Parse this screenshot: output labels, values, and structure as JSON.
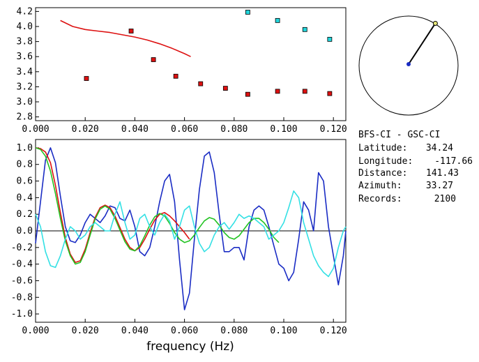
{
  "info": {
    "pair": "BFS-CI - GSC-CI",
    "rows": [
      {
        "label": "Latitude:",
        "value": "34.24"
      },
      {
        "label": "Longitude:",
        "value": "-117.66"
      },
      {
        "label": "Distance:",
        "value": "141.43"
      },
      {
        "label": "Azimuth:",
        "value": "33.27"
      },
      {
        "label": "Records:",
        "value": "2100"
      }
    ]
  },
  "chart_data": [
    {
      "type": "scatter",
      "xlabel": "",
      "ylabel": "",
      "xlim": [
        0.0,
        0.125
      ],
      "ylim": [
        2.75,
        4.25
      ],
      "x_ticks": [
        "0.000",
        "0.020",
        "0.040",
        "0.060",
        "0.080",
        "0.100",
        "0.120"
      ],
      "y_ticks": [
        "2.8",
        "3.0",
        "3.2",
        "3.4",
        "3.6",
        "3.8",
        "4.0",
        "4.2"
      ],
      "series": [
        {
          "color": "#dd1111",
          "marker": "square",
          "x": [
            0.0205,
            0.0385,
            0.0475,
            0.0565,
            0.0665,
            0.0765,
            0.0855,
            0.0975,
            0.1085,
            0.1185
          ],
          "y": [
            3.31,
            3.94,
            3.56,
            3.34,
            3.24,
            3.18,
            3.1,
            3.14,
            3.14,
            3.11
          ]
        },
        {
          "color": "#22d6dc",
          "marker": "square",
          "x": [
            0.0855,
            0.0975,
            0.1085,
            0.1185
          ],
          "y": [
            4.19,
            4.08,
            3.96,
            3.83
          ]
        },
        {
          "color": "#dd1111",
          "marker": "line",
          "x": [
            0.01,
            0.015,
            0.02,
            0.025,
            0.03,
            0.035,
            0.04,
            0.045,
            0.05,
            0.055,
            0.06,
            0.0625
          ],
          "y": [
            4.08,
            4.0,
            3.96,
            3.94,
            3.92,
            3.89,
            3.86,
            3.82,
            3.77,
            3.71,
            3.64,
            3.6
          ]
        }
      ]
    },
    {
      "type": "line",
      "xlabel": "frequency (Hz)",
      "ylabel": "",
      "xlim": [
        0.0,
        0.125
      ],
      "ylim": [
        -1.1,
        1.1
      ],
      "x_ticks": [
        "0.000",
        "0.020",
        "0.040",
        "0.060",
        "0.080",
        "0.100",
        "0.120"
      ],
      "y_ticks": [
        "1.0",
        "0.8",
        "0.6",
        "0.4",
        "0.2",
        "0.0",
        "-0.2",
        "-0.4",
        "-0.6",
        "-0.8",
        "-1.0"
      ],
      "series": [
        {
          "color": "#1a2cc4",
          "x": [
            0,
            0.002,
            0.004,
            0.006,
            0.008,
            0.01,
            0.012,
            0.014,
            0.016,
            0.018,
            0.02,
            0.022,
            0.024,
            0.026,
            0.028,
            0.03,
            0.032,
            0.034,
            0.036,
            0.038,
            0.04,
            0.042,
            0.044,
            0.046,
            0.048,
            0.05,
            0.052,
            0.054,
            0.056,
            0.058,
            0.06,
            0.062,
            0.064,
            0.066,
            0.068,
            0.07,
            0.072,
            0.074,
            0.076,
            0.078,
            0.08,
            0.082,
            0.084,
            0.086,
            0.088,
            0.09,
            0.092,
            0.094,
            0.096,
            0.098,
            0.1,
            0.102,
            0.104,
            0.106,
            0.108,
            0.11,
            0.112,
            0.114,
            0.116,
            0.118,
            0.12,
            0.122,
            0.124,
            0.125
          ],
          "y": [
            -0.15,
            0.35,
            0.85,
            1.0,
            0.82,
            0.42,
            0.05,
            -0.12,
            -0.14,
            -0.05,
            0.1,
            0.2,
            0.15,
            0.1,
            0.18,
            0.3,
            0.28,
            0.15,
            0.12,
            0.25,
            0.05,
            -0.25,
            -0.3,
            -0.2,
            0.05,
            0.35,
            0.6,
            0.68,
            0.35,
            -0.35,
            -0.95,
            -0.75,
            -0.1,
            0.5,
            0.9,
            0.95,
            0.7,
            0.2,
            -0.25,
            -0.25,
            -0.2,
            -0.2,
            -0.35,
            0.05,
            0.25,
            0.3,
            0.25,
            0.05,
            -0.18,
            -0.4,
            -0.45,
            -0.6,
            -0.5,
            -0.1,
            0.35,
            0.25,
            0.0,
            0.7,
            0.6,
            0.05,
            -0.3,
            -0.65,
            -0.3,
            0.0
          ]
        },
        {
          "color": "#dd1111",
          "x": [
            0,
            0.002,
            0.004,
            0.006,
            0.008,
            0.01,
            0.012,
            0.014,
            0.016,
            0.018,
            0.02,
            0.022,
            0.024,
            0.026,
            0.028,
            0.03,
            0.032,
            0.034,
            0.036,
            0.038,
            0.04,
            0.042,
            0.044,
            0.046,
            0.048,
            0.05,
            0.052,
            0.054,
            0.056,
            0.058,
            0.06,
            0.062
          ],
          "y": [
            1.0,
            0.99,
            0.95,
            0.82,
            0.55,
            0.22,
            -0.08,
            -0.28,
            -0.38,
            -0.36,
            -0.22,
            -0.02,
            0.16,
            0.28,
            0.31,
            0.28,
            0.18,
            0.04,
            -0.1,
            -0.2,
            -0.24,
            -0.2,
            -0.1,
            0.02,
            0.13,
            0.2,
            0.22,
            0.18,
            0.12,
            0.05,
            -0.02,
            -0.1
          ]
        },
        {
          "color": "#22c322",
          "x": [
            0,
            0.002,
            0.004,
            0.006,
            0.008,
            0.01,
            0.012,
            0.014,
            0.016,
            0.018,
            0.02,
            0.022,
            0.024,
            0.026,
            0.028,
            0.03,
            0.032,
            0.034,
            0.036,
            0.038,
            0.04,
            0.042,
            0.044,
            0.046,
            0.048,
            0.05,
            0.052,
            0.054,
            0.056,
            0.058,
            0.06,
            0.062,
            0.064,
            0.066,
            0.068,
            0.07,
            0.072,
            0.074,
            0.076,
            0.078,
            0.08,
            0.082,
            0.084,
            0.086,
            0.088,
            0.09,
            0.092,
            0.094,
            0.096,
            0.098
          ],
          "y": [
            1.0,
            0.98,
            0.9,
            0.72,
            0.45,
            0.15,
            -0.12,
            -0.3,
            -0.4,
            -0.38,
            -0.25,
            -0.05,
            0.14,
            0.26,
            0.3,
            0.26,
            0.15,
            0.01,
            -0.13,
            -0.22,
            -0.24,
            -0.18,
            -0.06,
            0.07,
            0.17,
            0.21,
            0.18,
            0.09,
            -0.02,
            -0.1,
            -0.14,
            -0.12,
            -0.05,
            0.04,
            0.12,
            0.16,
            0.14,
            0.07,
            -0.02,
            -0.08,
            -0.1,
            -0.06,
            0.02,
            0.1,
            0.15,
            0.15,
            0.1,
            0.02,
            -0.08,
            -0.14
          ]
        },
        {
          "color": "#33e0e4",
          "x": [
            0,
            0.002,
            0.004,
            0.006,
            0.008,
            0.01,
            0.012,
            0.014,
            0.016,
            0.018,
            0.02,
            0.022,
            0.024,
            0.026,
            0.028,
            0.03,
            0.032,
            0.034,
            0.036,
            0.038,
            0.04,
            0.042,
            0.044,
            0.046,
            0.048,
            0.05,
            0.052,
            0.054,
            0.056,
            0.058,
            0.06,
            0.062,
            0.064,
            0.066,
            0.068,
            0.07,
            0.072,
            0.074,
            0.076,
            0.078,
            0.08,
            0.082,
            0.084,
            0.086,
            0.088,
            0.09,
            0.092,
            0.094,
            0.096,
            0.098,
            0.1,
            0.102,
            0.104,
            0.106,
            0.108,
            0.11,
            0.112,
            0.114,
            0.116,
            0.118,
            0.12,
            0.122,
            0.124,
            0.125
          ],
          "y": [
            0.2,
            0.05,
            -0.25,
            -0.42,
            -0.44,
            -0.3,
            -0.1,
            0.05,
            0.0,
            -0.1,
            -0.05,
            0.05,
            0.1,
            0.05,
            0.0,
            0.0,
            0.2,
            0.35,
            0.1,
            -0.1,
            -0.05,
            0.15,
            0.2,
            0.05,
            -0.05,
            0.1,
            0.2,
            0.12,
            -0.1,
            0.05,
            0.25,
            0.3,
            0.05,
            -0.15,
            -0.25,
            -0.2,
            -0.05,
            0.05,
            0.1,
            0.02,
            0.1,
            0.2,
            0.15,
            0.18,
            0.15,
            0.1,
            0.05,
            -0.1,
            -0.05,
            0.0,
            0.1,
            0.28,
            0.48,
            0.4,
            0.1,
            -0.1,
            -0.3,
            -0.42,
            -0.5,
            -0.55,
            -0.45,
            -0.2,
            0.0,
            0.05
          ]
        }
      ]
    }
  ],
  "map": {
    "station_color": "#1a2cc4",
    "event_color": "#e8e87a",
    "azimuth_deg": 33.27
  }
}
